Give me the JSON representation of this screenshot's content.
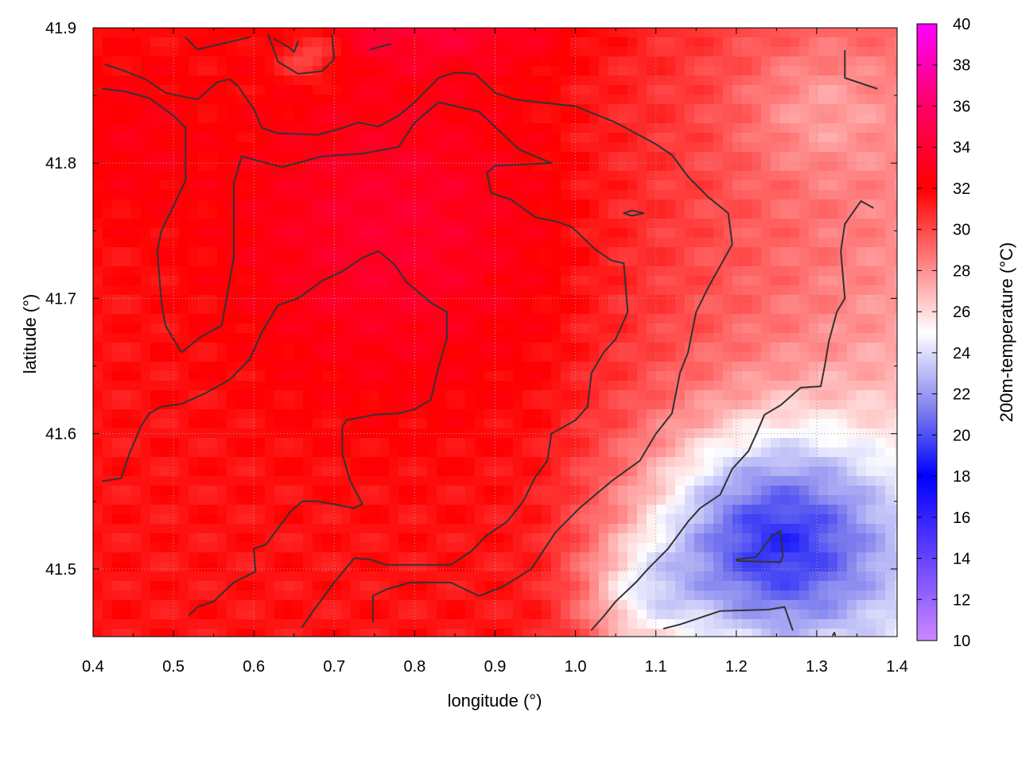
{
  "chart_data": {
    "type": "heatmap",
    "title": "",
    "xlabel": "longitude (°)",
    "ylabel": "latitude (°)",
    "colorbar_label": "200m-temperature (°C)",
    "xlim": [
      0.4,
      1.4
    ],
    "ylim": [
      41.45,
      41.9
    ],
    "x_ticks": [
      "0.4",
      "0.5",
      "0.6",
      "0.7",
      "0.8",
      "0.9",
      "1.0",
      "1.1",
      "1.2",
      "1.3",
      "1.4"
    ],
    "x_tick_values": [
      0.4,
      0.5,
      0.6,
      0.7,
      0.8,
      0.9,
      1.0,
      1.1,
      1.2,
      1.3,
      1.4
    ],
    "y_ticks": [
      "41.5",
      "41.6",
      "41.7",
      "41.8",
      "41.9"
    ],
    "y_tick_values": [
      41.5,
      41.6,
      41.7,
      41.8,
      41.9
    ],
    "colorbar_range": [
      10,
      40
    ],
    "colorbar_ticks": [
      "10",
      "12",
      "14",
      "16",
      "18",
      "20",
      "22",
      "24",
      "26",
      "28",
      "30",
      "32",
      "34",
      "36",
      "38",
      "40"
    ],
    "colorbar_tick_values": [
      10,
      12,
      14,
      16,
      18,
      20,
      22,
      24,
      26,
      28,
      30,
      32,
      34,
      36,
      38,
      40
    ],
    "colormap": [
      {
        "value": 10,
        "color": "#cc88ff"
      },
      {
        "value": 14,
        "color": "#6644ff"
      },
      {
        "value": 18,
        "color": "#0000ff"
      },
      {
        "value": 21,
        "color": "#7777ee"
      },
      {
        "value": 25,
        "color": "#ffffff"
      },
      {
        "value": 28,
        "color": "#ff9090"
      },
      {
        "value": 32,
        "color": "#ff0000"
      },
      {
        "value": 36,
        "color": "#ff0066"
      },
      {
        "value": 40,
        "color": "#ff00ff"
      }
    ],
    "grid": true,
    "contours": [
      [
        [
          0.415,
          41.873
        ],
        [
          0.44,
          41.868
        ],
        [
          0.465,
          41.862
        ],
        [
          0.49,
          41.852
        ],
        [
          0.53,
          41.847
        ],
        [
          0.555,
          41.86
        ],
        [
          0.57,
          41.862
        ],
        [
          0.58,
          41.857
        ],
        [
          0.6,
          41.84
        ],
        [
          0.61,
          41.826
        ],
        [
          0.63,
          41.822
        ],
        [
          0.68,
          41.821
        ],
        [
          0.71,
          41.826
        ],
        [
          0.73,
          41.83
        ],
        [
          0.755,
          41.827
        ],
        [
          0.78,
          41.835
        ],
        [
          0.8,
          41.845
        ],
        [
          0.83,
          41.863
        ],
        [
          0.85,
          41.867
        ],
        [
          0.875,
          41.866
        ],
        [
          0.9,
          41.852
        ],
        [
          0.925,
          41.847
        ],
        [
          1.0,
          41.842
        ],
        [
          1.05,
          41.83
        ],
        [
          1.1,
          41.814
        ],
        [
          1.12,
          41.806
        ],
        [
          1.14,
          41.79
        ],
        [
          1.165,
          41.775
        ],
        [
          1.19,
          41.763
        ],
        [
          1.195,
          41.74
        ],
        [
          1.18,
          41.724
        ],
        [
          1.165,
          41.708
        ],
        [
          1.15,
          41.69
        ],
        [
          1.14,
          41.66
        ],
        [
          1.13,
          41.645
        ],
        [
          1.12,
          41.615
        ],
        [
          1.1,
          41.6
        ],
        [
          1.08,
          41.58
        ],
        [
          1.045,
          41.565
        ],
        [
          1.005,
          41.545
        ],
        [
          0.975,
          41.527
        ],
        [
          0.945,
          41.5
        ],
        [
          0.91,
          41.487
        ],
        [
          0.88,
          41.48
        ],
        [
          0.845,
          41.49
        ],
        [
          0.795,
          41.49
        ],
        [
          0.765,
          41.485
        ],
        [
          0.748,
          41.48
        ],
        [
          0.748,
          41.461
        ]
      ],
      [
        [
          0.412,
          41.855
        ],
        [
          0.44,
          41.853
        ],
        [
          0.47,
          41.848
        ],
        [
          0.5,
          41.835
        ],
        [
          0.515,
          41.826
        ],
        [
          0.515,
          41.787
        ],
        [
          0.495,
          41.762
        ],
        [
          0.485,
          41.75
        ],
        [
          0.48,
          41.735
        ],
        [
          0.485,
          41.697
        ],
        [
          0.49,
          41.68
        ],
        [
          0.51,
          41.66
        ],
        [
          0.535,
          41.672
        ],
        [
          0.56,
          41.68
        ],
        [
          0.575,
          41.73
        ],
        [
          0.575,
          41.785
        ],
        [
          0.585,
          41.805
        ],
        [
          0.635,
          41.797
        ],
        [
          0.685,
          41.805
        ],
        [
          0.735,
          41.807
        ],
        [
          0.78,
          41.812
        ],
        [
          0.8,
          41.83
        ],
        [
          0.83,
          41.845
        ],
        [
          0.88,
          41.838
        ],
        [
          0.93,
          41.81
        ],
        [
          0.97,
          41.8
        ],
        [
          0.9,
          41.798
        ],
        [
          0.89,
          41.793
        ],
        [
          0.895,
          41.778
        ],
        [
          0.92,
          41.773
        ],
        [
          0.95,
          41.76
        ],
        [
          0.975,
          41.757
        ],
        [
          0.995,
          41.753
        ],
        [
          1.025,
          41.736
        ],
        [
          1.045,
          41.728
        ],
        [
          1.06,
          41.726
        ],
        [
          1.065,
          41.69
        ],
        [
          1.05,
          41.67
        ],
        [
          1.035,
          41.66
        ],
        [
          1.02,
          41.645
        ],
        [
          1.015,
          41.62
        ],
        [
          1.0,
          41.61
        ],
        [
          0.985,
          41.605
        ],
        [
          0.97,
          41.6
        ],
        [
          0.965,
          41.58
        ],
        [
          0.95,
          41.568
        ],
        [
          0.935,
          41.55
        ],
        [
          0.915,
          41.535
        ],
        [
          0.89,
          41.525
        ],
        [
          0.87,
          41.513
        ],
        [
          0.845,
          41.503
        ],
        [
          0.8,
          41.503
        ],
        [
          0.765,
          41.503
        ],
        [
          0.745,
          41.507
        ],
        [
          0.725,
          41.508
        ],
        [
          0.7,
          41.49
        ],
        [
          0.675,
          41.47
        ],
        [
          0.66,
          41.457
        ]
      ],
      [
        [
          0.412,
          41.565
        ],
        [
          0.435,
          41.567
        ],
        [
          0.445,
          41.585
        ],
        [
          0.46,
          41.606
        ],
        [
          0.47,
          41.615
        ],
        [
          0.485,
          41.62
        ],
        [
          0.51,
          41.622
        ],
        [
          0.54,
          41.63
        ],
        [
          0.57,
          41.64
        ],
        [
          0.595,
          41.655
        ],
        [
          0.61,
          41.675
        ],
        [
          0.63,
          41.695
        ],
        [
          0.655,
          41.7
        ],
        [
          0.685,
          41.713
        ],
        [
          0.71,
          41.72
        ],
        [
          0.735,
          41.73
        ],
        [
          0.755,
          41.735
        ],
        [
          0.775,
          41.725
        ],
        [
          0.79,
          41.712
        ],
        [
          0.82,
          41.697
        ],
        [
          0.84,
          41.69
        ],
        [
          0.84,
          41.67
        ],
        [
          0.83,
          41.65
        ],
        [
          0.82,
          41.625
        ],
        [
          0.8,
          41.618
        ],
        [
          0.78,
          41.615
        ],
        [
          0.75,
          41.614
        ],
        [
          0.715,
          41.61
        ],
        [
          0.71,
          41.605
        ],
        [
          0.71,
          41.585
        ],
        [
          0.72,
          41.565
        ],
        [
          0.735,
          41.548
        ],
        [
          0.725,
          41.545
        ],
        [
          0.68,
          41.55
        ],
        [
          0.66,
          41.55
        ],
        [
          0.645,
          41.542
        ],
        [
          0.63,
          41.53
        ],
        [
          0.615,
          41.518
        ],
        [
          0.6,
          41.515
        ],
        [
          0.602,
          41.498
        ],
        [
          0.575,
          41.49
        ],
        [
          0.55,
          41.476
        ],
        [
          0.53,
          41.472
        ],
        [
          0.52,
          41.466
        ]
      ],
      [
        [
          0.618,
          41.895
        ],
        [
          0.63,
          41.875
        ],
        [
          0.655,
          41.866
        ],
        [
          0.685,
          41.868
        ],
        [
          0.7,
          41.877
        ],
        [
          0.697,
          41.895
        ]
      ],
      [
        [
          0.515,
          41.893
        ],
        [
          0.53,
          41.884
        ],
        [
          0.595,
          41.893
        ]
      ],
      [
        [
          0.625,
          41.892
        ],
        [
          0.645,
          41.885
        ],
        [
          0.65,
          41.882
        ],
        [
          0.655,
          41.89
        ]
      ],
      [
        [
          0.745,
          41.884
        ],
        [
          0.77,
          41.888
        ]
      ],
      [
        [
          1.06,
          41.763
        ],
        [
          1.07,
          41.765
        ],
        [
          1.085,
          41.763
        ],
        [
          1.07,
          41.761
        ],
        [
          1.06,
          41.763
        ]
      ],
      [
        [
          1.335,
          41.883
        ],
        [
          1.335,
          41.863
        ],
        [
          1.36,
          41.858
        ],
        [
          1.375,
          41.855
        ]
      ],
      [
        [
          1.37,
          41.767
        ],
        [
          1.355,
          41.772
        ],
        [
          1.335,
          41.755
        ],
        [
          1.33,
          41.735
        ],
        [
          1.335,
          41.7
        ],
        [
          1.325,
          41.69
        ],
        [
          1.315,
          41.668
        ],
        [
          1.31,
          41.65
        ],
        [
          1.305,
          41.635
        ],
        [
          1.28,
          41.634
        ],
        [
          1.255,
          41.621
        ],
        [
          1.235,
          41.614
        ],
        [
          1.225,
          41.6
        ],
        [
          1.215,
          41.587
        ],
        [
          1.195,
          41.574
        ],
        [
          1.18,
          41.555
        ],
        [
          1.155,
          41.545
        ],
        [
          1.14,
          41.535
        ],
        [
          1.115,
          41.515
        ],
        [
          1.09,
          41.5
        ],
        [
          1.075,
          41.49
        ],
        [
          1.05,
          41.476
        ],
        [
          1.035,
          41.465
        ],
        [
          1.02,
          41.455
        ]
      ],
      [
        [
          1.2,
          41.507
        ],
        [
          1.225,
          41.509
        ],
        [
          1.245,
          41.525
        ],
        [
          1.255,
          41.528
        ],
        [
          1.258,
          41.51
        ],
        [
          1.255,
          41.505
        ],
        [
          1.2,
          41.506
        ]
      ],
      [
        [
          1.11,
          41.456
        ],
        [
          1.13,
          41.459
        ],
        [
          1.155,
          41.464
        ],
        [
          1.18,
          41.469
        ],
        [
          1.24,
          41.47
        ],
        [
          1.26,
          41.472
        ],
        [
          1.27,
          41.455
        ]
      ],
      [
        [
          1.32,
          41.451
        ],
        [
          1.322,
          41.453
        ],
        [
          1.323,
          41.451
        ]
      ]
    ]
  }
}
